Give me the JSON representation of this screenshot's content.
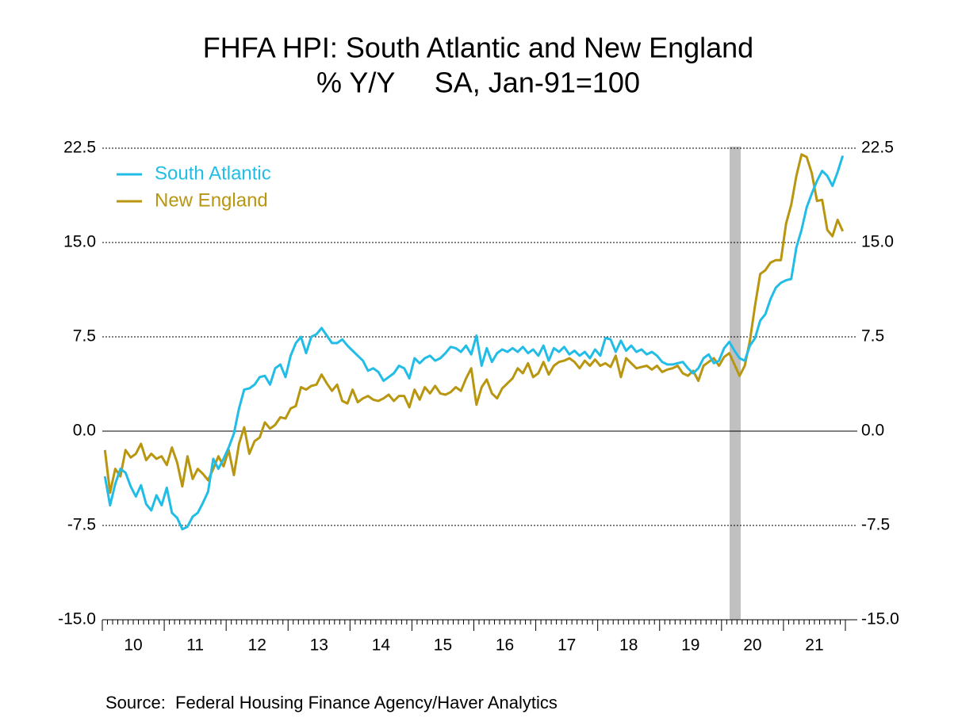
{
  "chart_data": {
    "type": "line",
    "title": "FHFA HPI: South Atlantic and New England",
    "subtitle": "% Y/Y     SA, Jan-91=100",
    "source": "Source:  Federal Housing Finance Agency/Haver Analytics",
    "categories": [
      "10",
      null,
      null,
      null,
      null,
      null,
      null,
      null,
      null,
      null,
      null,
      null,
      "11",
      null,
      null,
      null,
      null,
      null,
      null,
      null,
      null,
      null,
      null,
      null,
      "12",
      null,
      null,
      null,
      null,
      null,
      null,
      null,
      null,
      null,
      null,
      null,
      "13",
      null,
      null,
      null,
      null,
      null,
      null,
      null,
      null,
      null,
      null,
      null,
      "14",
      null,
      null,
      null,
      null,
      null,
      null,
      null,
      null,
      null,
      null,
      null,
      "15",
      null,
      null,
      null,
      null,
      null,
      null,
      null,
      null,
      null,
      null,
      null,
      "16",
      null,
      null,
      null,
      null,
      null,
      null,
      null,
      null,
      null,
      null,
      null,
      "17",
      null,
      null,
      null,
      null,
      null,
      null,
      null,
      null,
      null,
      null,
      null,
      "18",
      null,
      null,
      null,
      null,
      null,
      null,
      null,
      null,
      null,
      null,
      null,
      "19",
      null,
      null,
      null,
      null,
      null,
      null,
      null,
      null,
      null,
      null,
      null,
      "20",
      null,
      null,
      null,
      null,
      null,
      null,
      null,
      null,
      null,
      null,
      null,
      "21",
      null,
      null,
      null,
      null,
      null,
      null,
      null,
      null,
      null,
      null,
      null
    ],
    "series": [
      {
        "name": "South Atlantic",
        "color": "#22bde6",
        "values": [
          -3.6,
          -5.9,
          -4.2,
          -3.0,
          -3.3,
          -4.4,
          -5.2,
          -4.3,
          -5.8,
          -6.3,
          -5.1,
          -5.9,
          -4.5,
          -6.5,
          -6.9,
          -7.8,
          -7.6,
          -6.8,
          -6.5,
          -5.7,
          -4.8,
          -2.2,
          -3.0,
          -2.2,
          -1.3,
          -0.2,
          1.8,
          3.3,
          3.4,
          3.7,
          4.3,
          4.4,
          3.7,
          5.0,
          5.3,
          4.3,
          6.0,
          7.0,
          7.5,
          6.2,
          7.5,
          7.7,
          8.2,
          7.6,
          7.0,
          7.0,
          7.3,
          6.8,
          6.4,
          6.0,
          5.6,
          4.8,
          5.0,
          4.7,
          4.0,
          4.3,
          4.6,
          5.2,
          5.0,
          4.2,
          5.8,
          5.4,
          5.8,
          6.0,
          5.6,
          5.8,
          6.2,
          6.7,
          6.6,
          6.3,
          6.8,
          6.1,
          7.6,
          5.2,
          6.6,
          5.5,
          6.2,
          6.5,
          6.3,
          6.6,
          6.3,
          6.7,
          6.2,
          6.5,
          6.0,
          6.8,
          5.6,
          6.6,
          6.3,
          6.7,
          6.1,
          6.4,
          6.0,
          6.3,
          5.8,
          6.5,
          6.0,
          7.4,
          7.3,
          6.3,
          7.2,
          6.4,
          6.8,
          6.3,
          6.5,
          6.1,
          6.3,
          6.0,
          5.5,
          5.3,
          5.3,
          5.4,
          5.5,
          5.0,
          4.6,
          5.0,
          5.8,
          6.1,
          5.4,
          5.6,
          6.6,
          7.1,
          6.4,
          5.8,
          5.6,
          6.8,
          7.4,
          8.8,
          9.3,
          10.5,
          11.4,
          11.8,
          12.0,
          12.1,
          14.6,
          16.0,
          17.8,
          18.9,
          19.9,
          20.7,
          20.3,
          19.5,
          20.6,
          21.9
        ]
      },
      {
        "name": "New England",
        "color": "#b8960f",
        "values": [
          -1.5,
          -4.9,
          -3.0,
          -3.6,
          -1.5,
          -2.1,
          -1.8,
          -1.0,
          -2.3,
          -1.8,
          -2.2,
          -2.0,
          -2.7,
          -1.3,
          -2.5,
          -4.4,
          -2.0,
          -3.8,
          -3.0,
          -3.4,
          -3.9,
          -3.0,
          -2.0,
          -2.8,
          -1.5,
          -3.5,
          -1.0,
          0.3,
          -1.8,
          -0.8,
          -0.5,
          0.7,
          0.2,
          0.5,
          1.1,
          1.0,
          1.8,
          2.0,
          3.5,
          3.3,
          3.6,
          3.7,
          4.5,
          3.8,
          3.2,
          3.7,
          2.4,
          2.2,
          3.3,
          2.3,
          2.6,
          2.8,
          2.5,
          2.4,
          2.6,
          2.9,
          2.4,
          2.8,
          2.8,
          1.9,
          3.3,
          2.5,
          3.5,
          3.0,
          3.6,
          3.0,
          2.9,
          3.1,
          3.5,
          3.2,
          4.2,
          5.0,
          2.1,
          3.5,
          4.1,
          3.0,
          2.6,
          3.4,
          3.8,
          4.2,
          5.0,
          4.6,
          5.4,
          4.3,
          4.6,
          5.5,
          4.5,
          5.2,
          5.5,
          5.6,
          5.8,
          5.5,
          5.0,
          5.6,
          5.2,
          5.7,
          5.2,
          5.4,
          5.1,
          6.0,
          4.3,
          5.8,
          5.4,
          5.0,
          5.1,
          5.2,
          4.9,
          5.2,
          4.7,
          4.9,
          5.0,
          5.2,
          4.6,
          4.4,
          4.8,
          4.0,
          5.2,
          5.5,
          5.8,
          5.2,
          5.9,
          6.2,
          5.3,
          4.4,
          5.2,
          7.2,
          10.0,
          12.5,
          12.8,
          13.4,
          13.6,
          13.6,
          16.5,
          18.0,
          20.3,
          22.0,
          21.8,
          20.5,
          18.3,
          18.4,
          16.0,
          15.5,
          16.8,
          15.9
        ]
      }
    ],
    "ylim": [
      -15,
      22.5
    ],
    "yticks": [
      {
        "value": -15,
        "label": "-15.0"
      },
      -7.5,
      {
        "value": 0,
        "label": "0.0"
      },
      7.5,
      {
        "value": 15,
        "label": "15.0"
      },
      22.5
    ],
    "grid": true,
    "legend": "upper left"
  }
}
